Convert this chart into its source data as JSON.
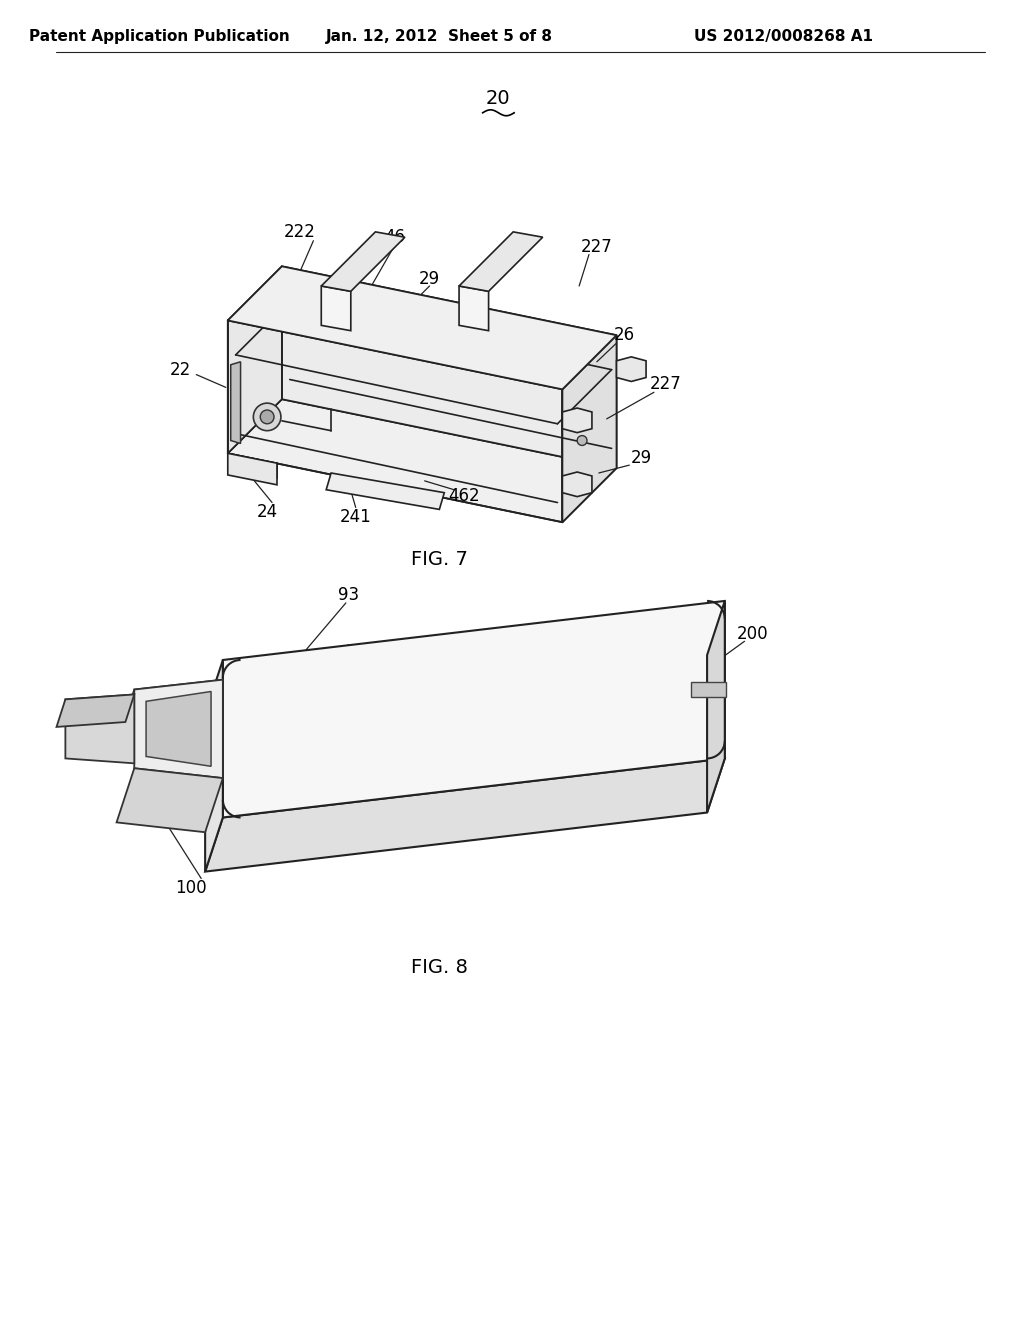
{
  "background_color": "#ffffff",
  "header_left": "Patent Application Publication",
  "header_center": "Jan. 12, 2012  Sheet 5 of 8",
  "header_right": "US 2012/0008268 A1",
  "header_fontsize": 11,
  "header_fontweight": "bold",
  "fig7_label": "FIG. 7",
  "fig8_label": "FIG. 8",
  "caption_fontsize": 14
}
